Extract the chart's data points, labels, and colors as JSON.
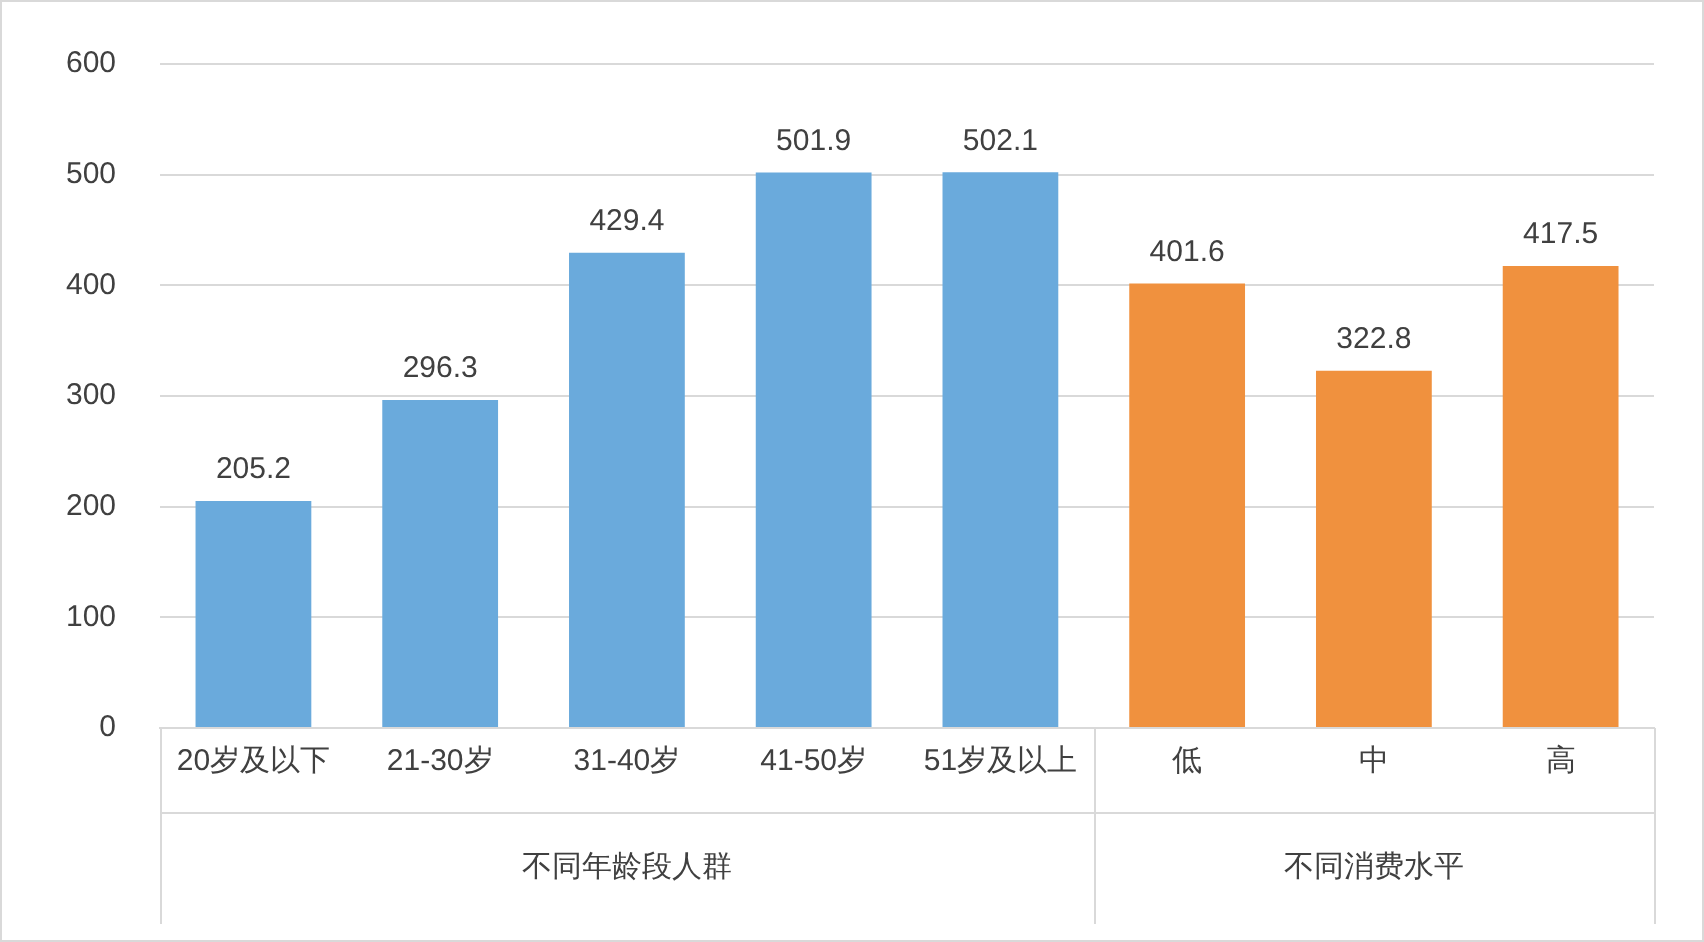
{
  "chart_data": {
    "type": "bar",
    "categories": [
      "20岁及以下",
      "21-30岁",
      "31-40岁",
      "41-50岁",
      "51岁及以上",
      "低",
      "中",
      "高"
    ],
    "values": [
      205.2,
      296.3,
      429.4,
      501.9,
      502.1,
      401.6,
      322.8,
      417.5
    ],
    "colors": [
      "#6aaadc",
      "#6aaadc",
      "#6aaadc",
      "#6aaadc",
      "#6aaadc",
      "#f0913e",
      "#f0913e",
      "#f0913e"
    ],
    "ylim": [
      0,
      600
    ],
    "yticks": [
      0,
      100,
      200,
      300,
      400,
      500,
      600
    ],
    "grid": "y",
    "data_labels": true,
    "legend": false,
    "annotations": [
      "不同年龄段人群",
      "不同消费水平"
    ]
  }
}
